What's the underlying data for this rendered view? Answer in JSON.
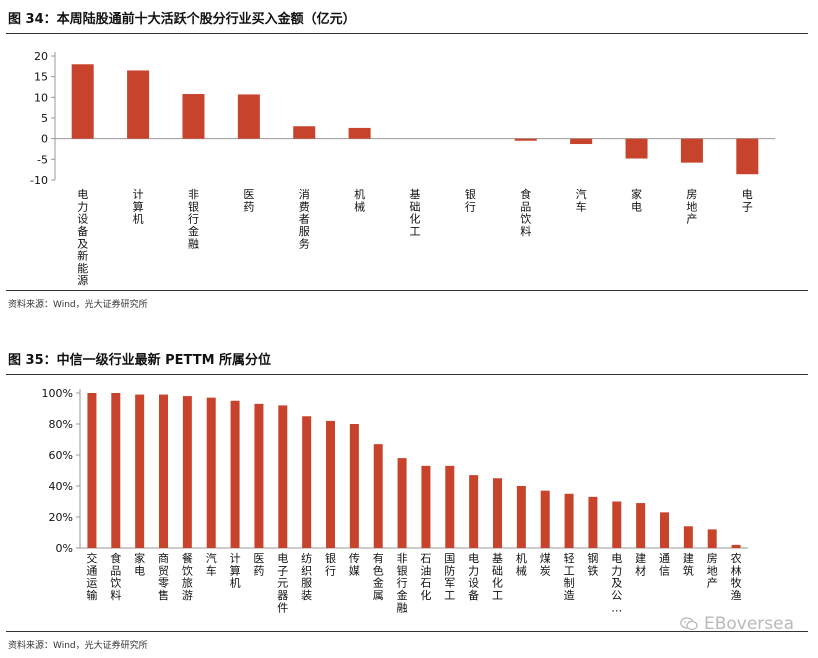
{
  "colors": {
    "bar": "#c8432b",
    "axis": "#999999",
    "text": "#111111"
  },
  "figure1": {
    "title": "图 34：本周陆股通前十大活跃个股分行业买入金额（亿元）",
    "source": "资料来源：Wind，光大证券研究所",
    "chart_data": {
      "type": "bar",
      "title": "本周陆股通前十大活跃个股分行业买入金额（亿元）",
      "categories": [
        "电力设备及新能源",
        "计算机",
        "非银行金融",
        "医药",
        "消费者服务",
        "机械",
        "基础化工",
        "银行",
        "食品饮料",
        "汽车",
        "家电",
        "房地产",
        "电子"
      ],
      "values": [
        18.0,
        16.5,
        10.8,
        10.7,
        3.0,
        2.6,
        0.0,
        0.0,
        -0.5,
        -1.3,
        -4.8,
        -5.8,
        -8.6
      ],
      "yticks": [
        "20",
        "15",
        "10",
        "5",
        "0",
        "-5",
        "-10"
      ],
      "ylim": [
        -10,
        20
      ],
      "xlabel": "",
      "ylabel": ""
    }
  },
  "figure2": {
    "title": "图 35：中信一级行业最新 PETTM 所属分位",
    "source": "资料来源：Wind，光大证券研究所",
    "chart_data": {
      "type": "bar",
      "title": "中信一级行业最新 PETTM 所属分位",
      "categories": [
        "交通运输",
        "食品饮料",
        "家电",
        "商贸零售",
        "餐饮旅游",
        "汽车",
        "计算机",
        "医药",
        "电子元器件",
        "纺织服装",
        "银行",
        "传媒",
        "有色金属",
        "非银行金融",
        "石油石化",
        "国防军工",
        "电力设备",
        "基础化工",
        "机械",
        "煤炭",
        "轻工制造",
        "钢铁",
        "电力及公…",
        "建材",
        "通信",
        "建筑",
        "房地产",
        "农林牧渔"
      ],
      "values": [
        100,
        100,
        99,
        99,
        98,
        97,
        95,
        93,
        92,
        85,
        82,
        80,
        67,
        58,
        53,
        53,
        47,
        45,
        40,
        37,
        35,
        33,
        30,
        29,
        23,
        14,
        12,
        2
      ],
      "yticks": [
        "100%",
        "80%",
        "60%",
        "40%",
        "20%",
        "0%"
      ],
      "ylim": [
        0,
        100
      ],
      "xlabel": "",
      "ylabel": ""
    }
  },
  "watermark": {
    "text": "EBoversea",
    "icon": "wechat-icon"
  }
}
